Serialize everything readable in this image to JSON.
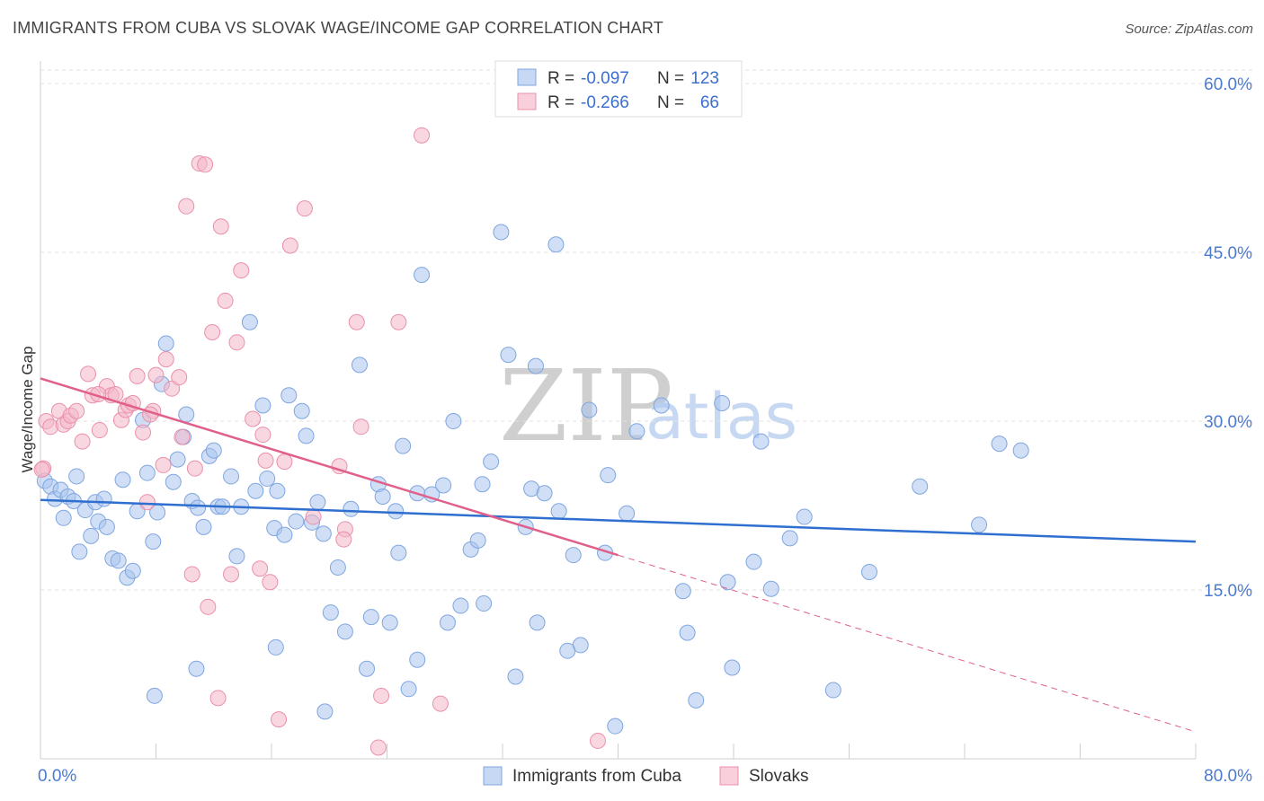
{
  "header": {
    "title": "IMMIGRANTS FROM CUBA VS SLOVAK WAGE/INCOME GAP CORRELATION CHART",
    "source": "Source: ZipAtlas.com"
  },
  "watermark": {
    "zip": "ZIP",
    "atlas": "atlas"
  },
  "stats": {
    "r_label": "R =",
    "n_label": "N =",
    "rows": [
      {
        "r": "-0.097",
        "n": "123",
        "color": "#a9c4ee"
      },
      {
        "r": "-0.266",
        "n": "66",
        "color": "#f4b7c9"
      }
    ]
  },
  "chart_data": {
    "type": "scatter",
    "title": "IMMIGRANTS FROM CUBA VS SLOVAK WAGE/INCOME GAP CORRELATION CHART",
    "xlabel": "",
    "ylabel": "Wage/Income Gap",
    "xlim": [
      0,
      80
    ],
    "ylim": [
      0,
      62
    ],
    "x_tick_labels": [
      "0.0%",
      "80.0%"
    ],
    "y_ticks": [
      15,
      30,
      45,
      60
    ],
    "y_tick_labels": [
      "15.0%",
      "30.0%",
      "45.0%",
      "60.0%"
    ],
    "grid": true,
    "legend_position": "bottom-center",
    "series": [
      {
        "name": "Immigrants from Cuba",
        "color": "#a9c4ee",
        "stroke": "#7fa6e0",
        "trend": {
          "x": [
            0,
            80
          ],
          "y": [
            23.0,
            19.3
          ],
          "color": "#2f6fd0"
        },
        "points": [
          [
            0.3,
            24.7
          ],
          [
            0.7,
            24.2
          ],
          [
            1.0,
            23.1
          ],
          [
            1.4,
            23.9
          ],
          [
            1.6,
            21.4
          ],
          [
            1.9,
            23.3
          ],
          [
            2.3,
            22.9
          ],
          [
            2.5,
            25.1
          ],
          [
            2.7,
            18.4
          ],
          [
            3.1,
            22.1
          ],
          [
            3.5,
            19.8
          ],
          [
            3.8,
            22.8
          ],
          [
            4.0,
            21.1
          ],
          [
            4.4,
            23.1
          ],
          [
            4.6,
            20.6
          ],
          [
            5.0,
            17.8
          ],
          [
            5.4,
            17.6
          ],
          [
            5.7,
            24.8
          ],
          [
            6.0,
            16.1
          ],
          [
            6.4,
            16.7
          ],
          [
            6.7,
            22.0
          ],
          [
            7.1,
            30.1
          ],
          [
            7.4,
            25.4
          ],
          [
            7.8,
            19.3
          ],
          [
            8.1,
            21.9
          ],
          [
            8.4,
            33.3
          ],
          [
            8.7,
            36.9
          ],
          [
            9.2,
            24.6
          ],
          [
            9.5,
            26.6
          ],
          [
            9.9,
            28.6
          ],
          [
            10.1,
            30.6
          ],
          [
            10.5,
            22.9
          ],
          [
            10.9,
            22.3
          ],
          [
            11.3,
            20.6
          ],
          [
            11.7,
            26.9
          ],
          [
            12.0,
            27.4
          ],
          [
            12.3,
            22.4
          ],
          [
            12.6,
            22.4
          ],
          [
            13.2,
            25.1
          ],
          [
            13.6,
            18.0
          ],
          [
            13.9,
            22.4
          ],
          [
            14.5,
            38.8
          ],
          [
            14.9,
            23.8
          ],
          [
            15.4,
            31.4
          ],
          [
            15.7,
            24.9
          ],
          [
            16.2,
            20.5
          ],
          [
            16.4,
            23.8
          ],
          [
            16.9,
            19.9
          ],
          [
            17.2,
            32.3
          ],
          [
            17.7,
            21.1
          ],
          [
            18.1,
            30.9
          ],
          [
            18.4,
            28.7
          ],
          [
            18.8,
            21.0
          ],
          [
            19.2,
            22.8
          ],
          [
            19.6,
            20.0
          ],
          [
            20.1,
            13.0
          ],
          [
            20.6,
            17.0
          ],
          [
            21.1,
            11.3
          ],
          [
            21.5,
            22.2
          ],
          [
            22.1,
            35.0
          ],
          [
            22.6,
            8.0
          ],
          [
            22.9,
            12.6
          ],
          [
            23.4,
            24.4
          ],
          [
            23.7,
            23.3
          ],
          [
            24.2,
            12.1
          ],
          [
            24.6,
            22.0
          ],
          [
            24.8,
            18.3
          ],
          [
            25.1,
            27.8
          ],
          [
            25.5,
            6.2
          ],
          [
            26.1,
            23.6
          ],
          [
            26.4,
            43.0
          ],
          [
            27.1,
            23.5
          ],
          [
            27.9,
            24.3
          ],
          [
            28.2,
            12.1
          ],
          [
            28.6,
            30.0
          ],
          [
            29.1,
            13.6
          ],
          [
            29.8,
            18.6
          ],
          [
            30.3,
            19.4
          ],
          [
            30.6,
            24.4
          ],
          [
            30.7,
            13.8
          ],
          [
            31.2,
            26.4
          ],
          [
            31.9,
            46.8
          ],
          [
            32.4,
            35.9
          ],
          [
            32.9,
            7.3
          ],
          [
            33.6,
            20.6
          ],
          [
            34.0,
            24.0
          ],
          [
            34.4,
            12.1
          ],
          [
            34.9,
            23.6
          ],
          [
            35.7,
            45.7
          ],
          [
            35.9,
            22.0
          ],
          [
            36.9,
            18.1
          ],
          [
            37.4,
            10.1
          ],
          [
            38.0,
            31.0
          ],
          [
            39.1,
            18.3
          ],
          [
            39.3,
            25.2
          ],
          [
            39.8,
            2.9
          ],
          [
            40.6,
            21.8
          ],
          [
            41.3,
            29.1
          ],
          [
            43.0,
            31.4
          ],
          [
            44.5,
            14.9
          ],
          [
            44.8,
            11.2
          ],
          [
            45.4,
            5.2
          ],
          [
            47.2,
            31.6
          ],
          [
            47.6,
            15.7
          ],
          [
            49.4,
            17.5
          ],
          [
            49.9,
            28.2
          ],
          [
            50.6,
            15.1
          ],
          [
            51.9,
            19.6
          ],
          [
            52.9,
            21.5
          ],
          [
            54.9,
            6.1
          ],
          [
            57.4,
            16.6
          ],
          [
            60.9,
            24.2
          ],
          [
            65.0,
            20.8
          ],
          [
            66.4,
            28.0
          ],
          [
            67.9,
            27.4
          ],
          [
            7.9,
            5.6
          ],
          [
            10.8,
            8.0
          ],
          [
            16.3,
            9.9
          ],
          [
            19.7,
            4.2
          ],
          [
            26.1,
            8.8
          ],
          [
            34.3,
            34.9
          ],
          [
            36.5,
            9.6
          ],
          [
            47.9,
            8.1
          ]
        ]
      },
      {
        "name": "Slovaks",
        "color": "#f4b7c9",
        "stroke": "#ea90aa",
        "trend": {
          "x": [
            0,
            40.0
          ],
          "y": [
            33.8,
            18.1
          ],
          "x_dashed_end": 80,
          "y_dashed_end": 2.4,
          "color": "#e0608a"
        },
        "points": [
          [
            0.2,
            25.8
          ],
          [
            0.4,
            30.0
          ],
          [
            0.7,
            29.5
          ],
          [
            1.3,
            30.9
          ],
          [
            1.6,
            29.7
          ],
          [
            1.9,
            30.0
          ],
          [
            2.1,
            30.5
          ],
          [
            2.5,
            30.9
          ],
          [
            2.9,
            28.2
          ],
          [
            3.3,
            34.2
          ],
          [
            3.6,
            32.3
          ],
          [
            4.1,
            29.2
          ],
          [
            4.6,
            33.1
          ],
          [
            4.9,
            32.3
          ],
          [
            5.2,
            32.4
          ],
          [
            5.6,
            30.1
          ],
          [
            5.9,
            31.0
          ],
          [
            6.1,
            31.4
          ],
          [
            6.4,
            31.6
          ],
          [
            6.7,
            34.0
          ],
          [
            7.1,
            29.0
          ],
          [
            7.4,
            22.8
          ],
          [
            7.8,
            30.9
          ],
          [
            8.0,
            34.1
          ],
          [
            8.5,
            26.1
          ],
          [
            8.7,
            35.5
          ],
          [
            9.1,
            32.9
          ],
          [
            9.6,
            33.9
          ],
          [
            9.8,
            28.6
          ],
          [
            10.1,
            49.1
          ],
          [
            10.5,
            16.4
          ],
          [
            10.7,
            25.8
          ],
          [
            11.0,
            52.9
          ],
          [
            11.4,
            52.8
          ],
          [
            11.6,
            13.5
          ],
          [
            11.9,
            37.9
          ],
          [
            12.3,
            5.4
          ],
          [
            12.5,
            47.3
          ],
          [
            12.8,
            40.7
          ],
          [
            13.2,
            16.4
          ],
          [
            13.6,
            37.0
          ],
          [
            13.9,
            43.4
          ],
          [
            14.7,
            30.2
          ],
          [
            15.2,
            16.9
          ],
          [
            15.4,
            28.8
          ],
          [
            15.6,
            26.5
          ],
          [
            15.9,
            15.7
          ],
          [
            16.5,
            3.5
          ],
          [
            16.9,
            26.4
          ],
          [
            17.3,
            45.6
          ],
          [
            18.3,
            48.9
          ],
          [
            18.9,
            21.5
          ],
          [
            20.7,
            26.0
          ],
          [
            21.1,
            20.4
          ],
          [
            21.0,
            19.5
          ],
          [
            21.9,
            38.8
          ],
          [
            22.2,
            29.5
          ],
          [
            23.4,
            1.0
          ],
          [
            23.6,
            5.6
          ],
          [
            24.8,
            38.8
          ],
          [
            26.4,
            55.4
          ],
          [
            27.7,
            4.9
          ],
          [
            38.6,
            1.6
          ],
          [
            0.1,
            25.7
          ],
          [
            4.0,
            32.4
          ],
          [
            7.6,
            30.6
          ]
        ]
      }
    ]
  }
}
